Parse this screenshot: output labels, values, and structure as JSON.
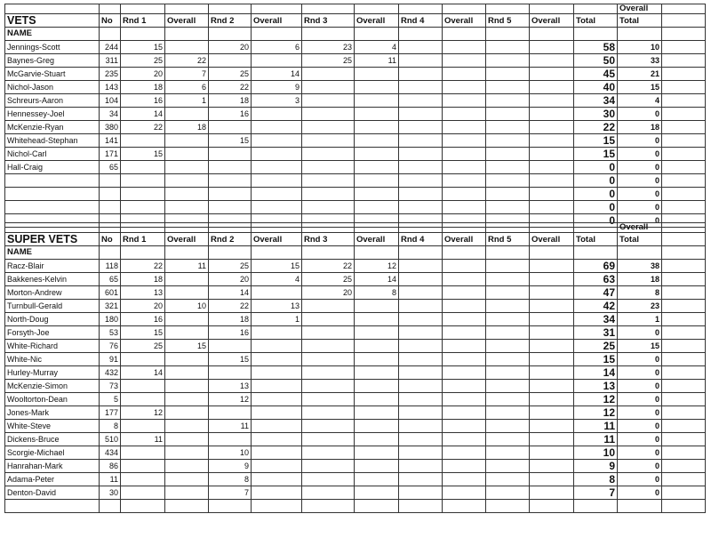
{
  "columns": {
    "no": "No",
    "rnd1": "Rnd 1",
    "overall": "Overall",
    "rnd2": "Rnd 2",
    "rnd3": "Rnd 3",
    "rnd4": "Rnd 4",
    "rnd5": "Rnd 5",
    "total": "Total",
    "overall_total_top": "Overall",
    "overall_total_bottom": "Total",
    "name": "NAME"
  },
  "sections": [
    {
      "title": "VETS",
      "rows": [
        [
          "Jennings-Scott",
          "244",
          "15",
          "",
          "20",
          "6",
          "23",
          "4",
          "",
          "",
          "",
          "",
          "58",
          "10"
        ],
        [
          "Baynes-Greg",
          "311",
          "25",
          "22",
          "",
          "",
          "25",
          "11",
          "",
          "",
          "",
          "",
          "50",
          "33"
        ],
        [
          "McGarvie-Stuart",
          "235",
          "20",
          "7",
          "25",
          "14",
          "",
          "",
          "",
          "",
          "",
          "",
          "45",
          "21"
        ],
        [
          "Nichol-Jason",
          "143",
          "18",
          "6",
          "22",
          "9",
          "",
          "",
          "",
          "",
          "",
          "",
          "40",
          "15"
        ],
        [
          "Schreurs-Aaron",
          "104",
          "16",
          "1",
          "18",
          "3",
          "",
          "",
          "",
          "",
          "",
          "",
          "34",
          "4"
        ],
        [
          "Hennessey-Joel",
          "34",
          "14",
          "",
          "16",
          "",
          "",
          "",
          "",
          "",
          "",
          "",
          "30",
          "0"
        ],
        [
          "McKenzie-Ryan",
          "380",
          "22",
          "18",
          "",
          "",
          "",
          "",
          "",
          "",
          "",
          "",
          "22",
          "18"
        ],
        [
          "Whitehead-Stephan",
          "141",
          "",
          "",
          "15",
          "",
          "",
          "",
          "",
          "",
          "",
          "",
          "15",
          "0"
        ],
        [
          "Nichol-Carl",
          "171",
          "15",
          "",
          "",
          "",
          "",
          "",
          "",
          "",
          "",
          "",
          "15",
          "0"
        ],
        [
          "Hall-Craig",
          "65",
          "",
          "",
          "",
          "",
          "",
          "",
          "",
          "",
          "",
          "",
          "0",
          "0"
        ],
        [
          "",
          "",
          "",
          "",
          "",
          "",
          "",
          "",
          "",
          "",
          "",
          "",
          "0",
          "0"
        ],
        [
          "",
          "",
          "",
          "",
          "",
          "",
          "",
          "",
          "",
          "",
          "",
          "",
          "0",
          "0"
        ],
        [
          "",
          "",
          "",
          "",
          "",
          "",
          "",
          "",
          "",
          "",
          "",
          "",
          "0",
          "0"
        ],
        [
          "",
          "",
          "",
          "",
          "",
          "",
          "",
          "",
          "",
          "",
          "",
          "",
          "0",
          "0"
        ]
      ]
    },
    {
      "title": "SUPER VETS",
      "rows": [
        [
          "Racz-Blair",
          "118",
          "22",
          "11",
          "25",
          "15",
          "22",
          "12",
          "",
          "",
          "",
          "",
          "69",
          "38"
        ],
        [
          "Bakkenes-Kelvin",
          "65",
          "18",
          "",
          "20",
          "4",
          "25",
          "14",
          "",
          "",
          "",
          "",
          "63",
          "18"
        ],
        [
          "Morton-Andrew",
          "601",
          "13",
          "",
          "14",
          "",
          "20",
          "8",
          "",
          "",
          "",
          "",
          "47",
          "8"
        ],
        [
          "Turnbull-Gerald",
          "321",
          "20",
          "10",
          "22",
          "13",
          "",
          "",
          "",
          "",
          "",
          "",
          "42",
          "23"
        ],
        [
          "North-Doug",
          "180",
          "16",
          "",
          "18",
          "1",
          "",
          "",
          "",
          "",
          "",
          "",
          "34",
          "1"
        ],
        [
          "Forsyth-Joe",
          "53",
          "15",
          "",
          "16",
          "",
          "",
          "",
          "",
          "",
          "",
          "",
          "31",
          "0"
        ],
        [
          "White-Richard",
          "76",
          "25",
          "15",
          "",
          "",
          "",
          "",
          "",
          "",
          "",
          "",
          "25",
          "15"
        ],
        [
          "White-Nic",
          "91",
          "",
          "",
          "15",
          "",
          "",
          "",
          "",
          "",
          "",
          "",
          "15",
          "0"
        ],
        [
          "Hurley-Murray",
          "432",
          "14",
          "",
          "",
          "",
          "",
          "",
          "",
          "",
          "",
          "",
          "14",
          "0"
        ],
        [
          "McKenzie-Simon",
          "73",
          "",
          "",
          "13",
          "",
          "",
          "",
          "",
          "",
          "",
          "",
          "13",
          "0"
        ],
        [
          "Wooltorton-Dean",
          "5",
          "",
          "",
          "12",
          "",
          "",
          "",
          "",
          "",
          "",
          "",
          "12",
          "0"
        ],
        [
          "Jones-Mark",
          "177",
          "12",
          "",
          "",
          "",
          "",
          "",
          "",
          "",
          "",
          "",
          "12",
          "0"
        ],
        [
          "White-Steve",
          "8",
          "",
          "",
          "11",
          "",
          "",
          "",
          "",
          "",
          "",
          "",
          "11",
          "0"
        ],
        [
          "Dickens-Bruce",
          "510",
          "11",
          "",
          "",
          "",
          "",
          "",
          "",
          "",
          "",
          "",
          "11",
          "0"
        ],
        [
          "Scorgie-Michael",
          "434",
          "",
          "",
          "10",
          "",
          "",
          "",
          "",
          "",
          "",
          "",
          "10",
          "0"
        ],
        [
          "Hanrahan-Mark",
          "86",
          "",
          "",
          "9",
          "",
          "",
          "",
          "",
          "",
          "",
          "",
          "9",
          "0"
        ],
        [
          "Adama-Peter",
          "11",
          "",
          "",
          "8",
          "",
          "",
          "",
          "",
          "",
          "",
          "",
          "8",
          "0"
        ],
        [
          "Denton-David",
          "30",
          "",
          "",
          "7",
          "",
          "",
          "",
          "",
          "",
          "",
          "",
          "7",
          "0"
        ]
      ]
    }
  ]
}
